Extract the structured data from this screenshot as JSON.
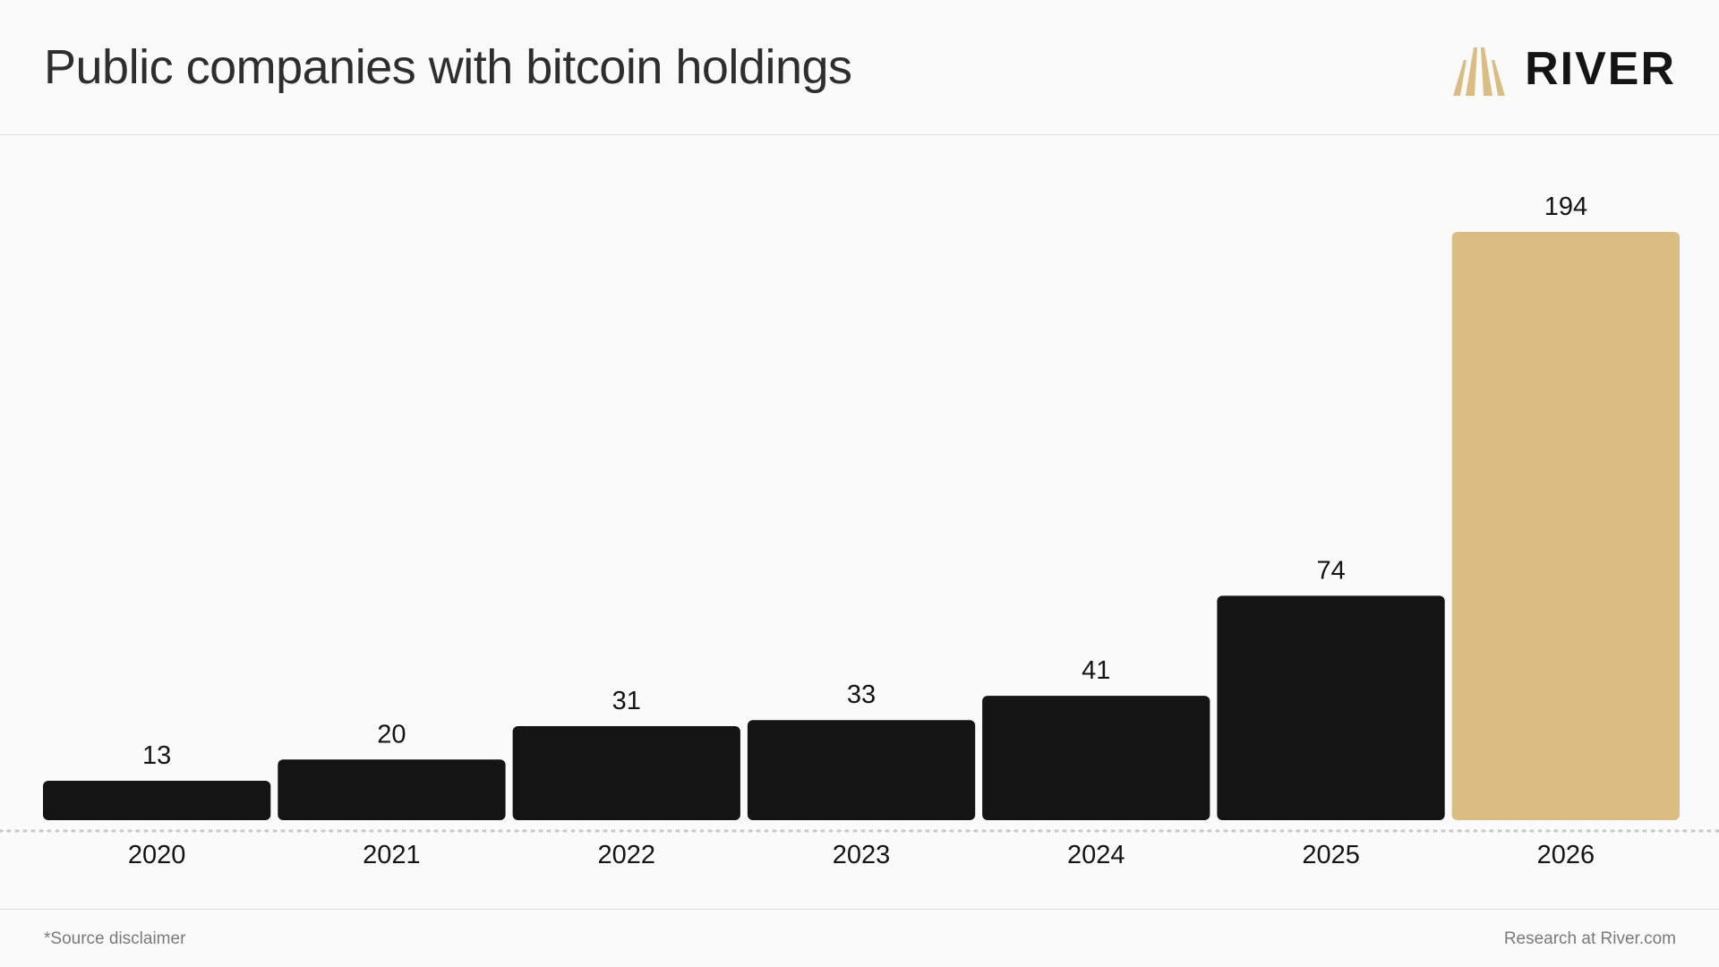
{
  "header": {
    "title": "Public companies with bitcoin holdings",
    "brand": "RIVER"
  },
  "footer": {
    "footnote": "*Source disclaimer",
    "credit": "Research at River.com"
  },
  "colors": {
    "bar": "#141414",
    "highlight_bar": "#d9bd82",
    "baseline": "#c8c8c8",
    "logo": "#d9bd82"
  },
  "icons": {
    "logo": "river-logo-icon"
  },
  "chart_data": {
    "type": "bar",
    "title": "Public companies with bitcoin holdings",
    "categories": [
      "2020",
      "2021",
      "2022",
      "2023",
      "2024",
      "2025",
      "2026"
    ],
    "values": [
      13,
      20,
      31,
      33,
      41,
      74,
      194
    ],
    "data_labels": [
      "13",
      "20",
      "31",
      "33",
      "41",
      "74",
      "194"
    ],
    "highlight_index": 6,
    "xlabel": "",
    "ylabel": "",
    "ylim": [
      0,
      194
    ],
    "grid": false,
    "legend": "none"
  }
}
